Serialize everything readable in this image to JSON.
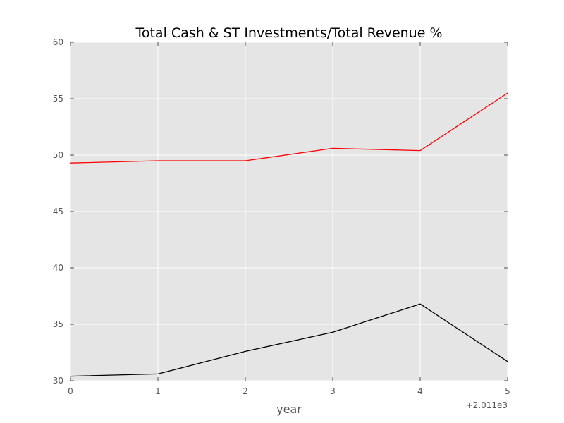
{
  "chart_data": {
    "type": "line",
    "title": "Total Cash & ST Investments/Total Revenue %",
    "xlabel": "year",
    "ylabel": "",
    "x_offset_label": "+2.011e3",
    "x": [
      0,
      1,
      2,
      3,
      4,
      5
    ],
    "xlim": [
      0,
      5
    ],
    "ylim": [
      30,
      60
    ],
    "xticks": [
      "0",
      "1",
      "2",
      "3",
      "4",
      "5"
    ],
    "yticks": [
      "30",
      "35",
      "40",
      "45",
      "50",
      "55",
      "60"
    ],
    "grid": true,
    "series": [
      {
        "color": "#ff0000",
        "values": [
          49.3,
          49.5,
          49.5,
          50.6,
          50.4,
          55.5
        ]
      },
      {
        "color": "#000000",
        "values": [
          30.4,
          30.6,
          32.6,
          34.3,
          36.8,
          31.7
        ]
      }
    ],
    "colors": {
      "plot_background": "#e5e5e5",
      "grid": "#ffffff",
      "tick": "#555555"
    }
  }
}
